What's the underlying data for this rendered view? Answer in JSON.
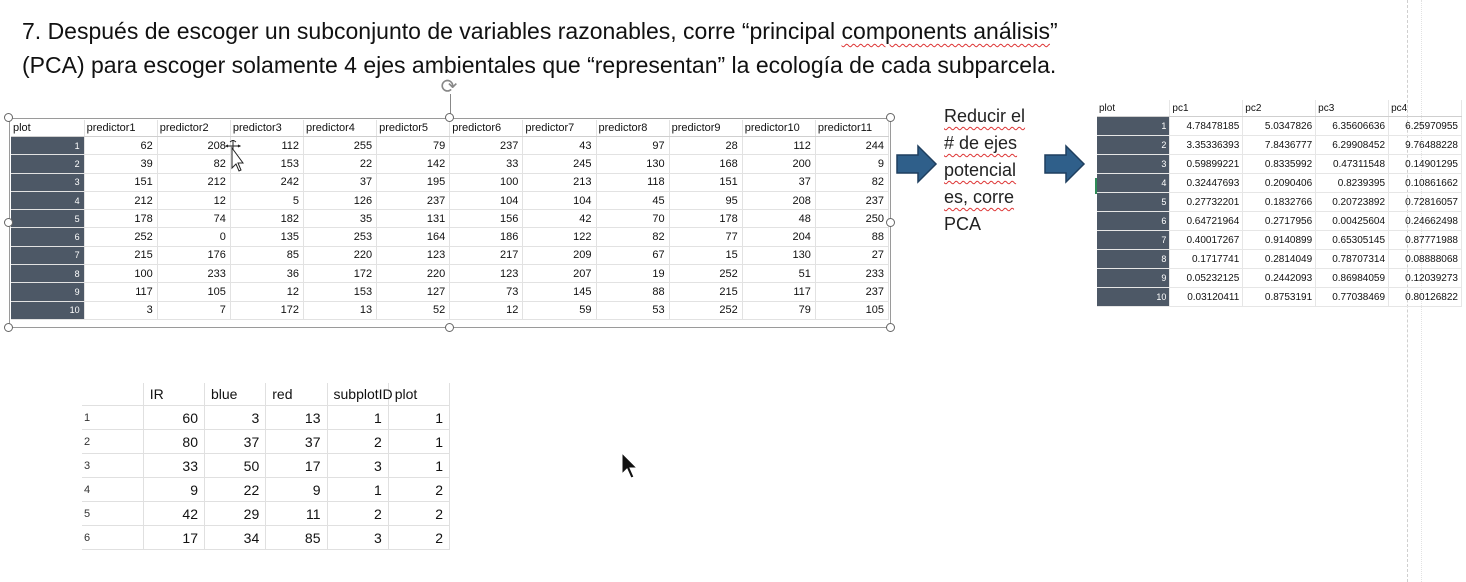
{
  "title": {
    "line1_pre": "7. Después de  escoger un subconjunto de variables razonables, corre “principal ",
    "line1_wavy": "components análisis",
    "line1_post": "”",
    "line2": "(PCA) para escoger solamente 4 ejes ambientales que “representan” la ecología de cada subparcela."
  },
  "predictors": {
    "headers": [
      "plot",
      "predictor1",
      "predictor2",
      "predictor3",
      "predictor4",
      "predictor5",
      "predictor6",
      "predictor7",
      "predictor8",
      "predictor9",
      "predictor10",
      "predictor11"
    ],
    "rows": [
      [
        "1",
        "62",
        "208",
        "112",
        "255",
        "79",
        "237",
        "43",
        "97",
        "28",
        "112",
        "244"
      ],
      [
        "2",
        "39",
        "82",
        "153",
        "22",
        "142",
        "33",
        "245",
        "130",
        "168",
        "200",
        "9"
      ],
      [
        "3",
        "151",
        "212",
        "242",
        "37",
        "195",
        "100",
        "213",
        "118",
        "151",
        "37",
        "82"
      ],
      [
        "4",
        "212",
        "12",
        "5",
        "126",
        "237",
        "104",
        "104",
        "45",
        "95",
        "208",
        "237"
      ],
      [
        "5",
        "178",
        "74",
        "182",
        "35",
        "131",
        "156",
        "42",
        "70",
        "178",
        "48",
        "250"
      ],
      [
        "6",
        "252",
        "0",
        "135",
        "253",
        "164",
        "186",
        "122",
        "82",
        "77",
        "204",
        "88"
      ],
      [
        "7",
        "215",
        "176",
        "85",
        "220",
        "123",
        "217",
        "209",
        "67",
        "15",
        "130",
        "27"
      ],
      [
        "8",
        "100",
        "233",
        "36",
        "172",
        "220",
        "123",
        "207",
        "19",
        "252",
        "51",
        "233"
      ],
      [
        "9",
        "117",
        "105",
        "12",
        "153",
        "127",
        "73",
        "145",
        "88",
        "215",
        "117",
        "237"
      ],
      [
        "10",
        "3",
        "7",
        "172",
        "13",
        "52",
        "12",
        "59",
        "53",
        "252",
        "79",
        "105"
      ]
    ]
  },
  "middle_text": {
    "l1": "Reducir el",
    "l2": "# de ejes",
    "l3": "potencial",
    "l4": "es, corre",
    "l5": "PCA"
  },
  "pca": {
    "headers": [
      "plot",
      "pc1",
      "pc2",
      "pc3",
      "pc4"
    ],
    "rows": [
      [
        "1",
        "4.78478185",
        "5.0347826",
        "6.35606636",
        "6.25970955"
      ],
      [
        "2",
        "3.35336393",
        "7.8436777",
        "6.29908452",
        "9.76488228"
      ],
      [
        "3",
        "0.59899221",
        "0.8335992",
        "0.47311548",
        "0.14901295"
      ],
      [
        "4",
        "0.32447693",
        "0.2090406",
        "0.8239395",
        "0.10861662"
      ],
      [
        "5",
        "0.27732201",
        "0.1832766",
        "0.20723892",
        "0.72816057"
      ],
      [
        "6",
        "0.64721964",
        "0.2717956",
        "0.00425604",
        "0.24662498"
      ],
      [
        "7",
        "0.40017267",
        "0.9140899",
        "0.65305145",
        "0.87771988"
      ],
      [
        "8",
        "0.1717741",
        "0.2814049",
        "0.78707314",
        "0.08888068"
      ],
      [
        "9",
        "0.05232125",
        "0.2442093",
        "0.86984059",
        "0.12039273"
      ],
      [
        "10",
        "0.03120411",
        "0.8753191",
        "0.77038469",
        "0.80126822"
      ]
    ]
  },
  "small_table": {
    "headers": [
      "",
      "IR",
      "blue",
      "red",
      "subplotID",
      "plot"
    ],
    "rows": [
      [
        "1",
        "60",
        "3",
        "13",
        "1",
        "1"
      ],
      [
        "2",
        "80",
        "37",
        "37",
        "2",
        "1"
      ],
      [
        "3",
        "33",
        "50",
        "17",
        "3",
        "1"
      ],
      [
        "4",
        "9",
        "22",
        "9",
        "1",
        "2"
      ],
      [
        "5",
        "42",
        "29",
        "11",
        "2",
        "2"
      ],
      [
        "6",
        "17",
        "34",
        "85",
        "3",
        "2"
      ]
    ]
  },
  "icons": {
    "rotate": "rotate-handle-icon",
    "arrow": "right-arrow-icon",
    "cursor": "mouse-pointer-icon"
  },
  "colors": {
    "plot_column": "#4d5866",
    "arrow_fill": "#2f5f8a",
    "wavy_underline": "#dd3333"
  }
}
